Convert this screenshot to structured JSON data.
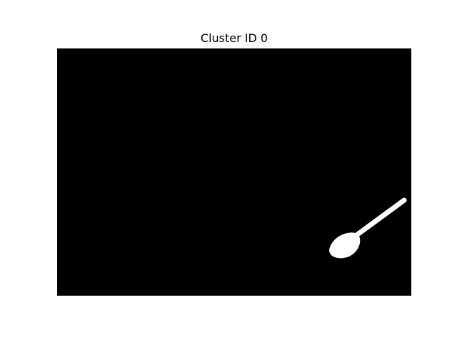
{
  "figure": {
    "title": "Cluster ID 0"
  },
  "mask": {
    "background_color": "#000000",
    "object_color": "#ffffff",
    "object_icon": "spoon-icon"
  }
}
